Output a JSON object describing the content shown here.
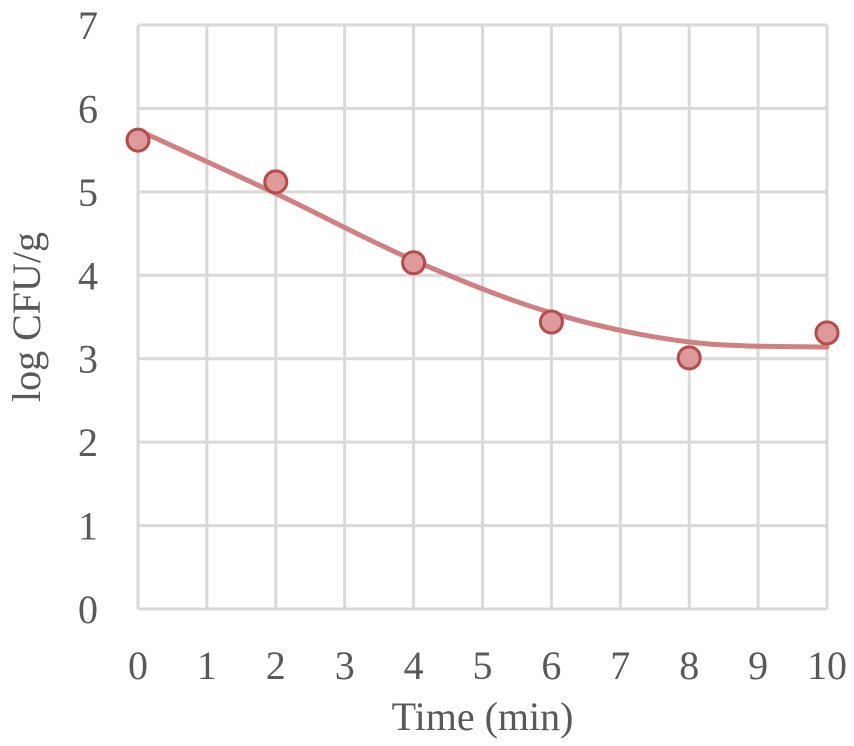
{
  "chart_data": {
    "type": "scatter",
    "title": "",
    "xlabel": "Time (min)",
    "ylabel": "log CFU/g",
    "xlim": [
      0,
      10
    ],
    "ylim": [
      0,
      7
    ],
    "x_ticks": [
      0,
      1,
      2,
      3,
      4,
      5,
      6,
      7,
      8,
      9,
      10
    ],
    "y_ticks": [
      0,
      1,
      2,
      3,
      4,
      5,
      6,
      7
    ],
    "grid": true,
    "legend": "none",
    "series": [
      {
        "points": [
          {
            "x": 0,
            "y": 5.62
          },
          {
            "x": 2,
            "y": 5.12
          },
          {
            "x": 4,
            "y": 4.15
          },
          {
            "x": 6,
            "y": 3.44
          },
          {
            "x": 8,
            "y": 3.01
          },
          {
            "x": 10,
            "y": 3.31
          }
        ],
        "marker_fill": "#dc9a9a",
        "marker_edge": "#b84a4a"
      }
    ],
    "trendline": {
      "type": "polynomial",
      "points": [
        {
          "x": 0,
          "y": 5.74
        },
        {
          "x": 2,
          "y": 4.98
        },
        {
          "x": 4,
          "y": 4.18
        },
        {
          "x": 6,
          "y": 3.55
        },
        {
          "x": 8,
          "y": 3.2
        },
        {
          "x": 10,
          "y": 3.14
        }
      ],
      "color": "#d08080"
    }
  }
}
